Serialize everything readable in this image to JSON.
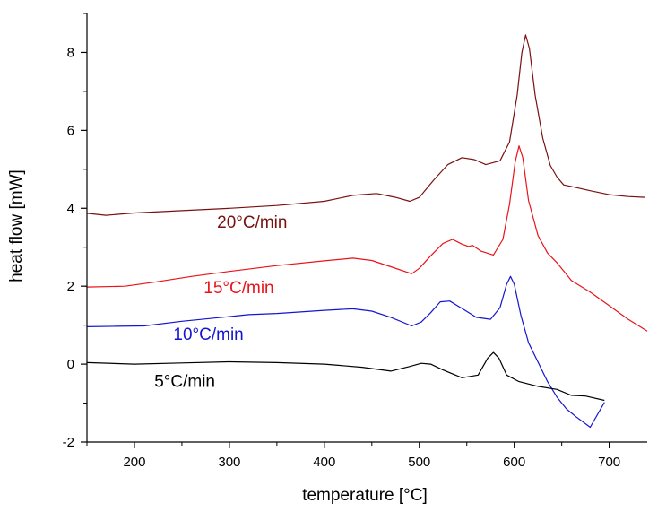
{
  "chart_data": {
    "type": "line",
    "title": "",
    "xlabel": "temperature [°C]",
    "ylabel": "heat flow [mW]",
    "xlim": [
      150,
      740
    ],
    "ylim": [
      -2,
      9
    ],
    "x_ticks": [
      "200",
      "300",
      "400",
      "500",
      "600",
      "700"
    ],
    "y_ticks": [
      "-2",
      "0",
      "2",
      "4",
      "6",
      "8"
    ],
    "grid": false,
    "legend": "none",
    "series": [
      {
        "name": "20°C/min",
        "color": "#7a1010",
        "points": [
          [
            150,
            3.87
          ],
          [
            170,
            3.82
          ],
          [
            200,
            3.88
          ],
          [
            250,
            3.94
          ],
          [
            300,
            4.0
          ],
          [
            350,
            4.07
          ],
          [
            400,
            4.18
          ],
          [
            430,
            4.33
          ],
          [
            455,
            4.38
          ],
          [
            475,
            4.28
          ],
          [
            490,
            4.18
          ],
          [
            500,
            4.28
          ],
          [
            515,
            4.72
          ],
          [
            530,
            5.12
          ],
          [
            545,
            5.3
          ],
          [
            558,
            5.25
          ],
          [
            570,
            5.12
          ],
          [
            585,
            5.22
          ],
          [
            595,
            5.7
          ],
          [
            603,
            6.9
          ],
          [
            608,
            8.0
          ],
          [
            612,
            8.45
          ],
          [
            616,
            8.1
          ],
          [
            622,
            6.9
          ],
          [
            630,
            5.8
          ],
          [
            638,
            5.1
          ],
          [
            645,
            4.8
          ],
          [
            652,
            4.6
          ],
          [
            662,
            4.55
          ],
          [
            680,
            4.45
          ],
          [
            700,
            4.35
          ],
          [
            720,
            4.3
          ],
          [
            738,
            4.28
          ]
        ]
      },
      {
        "name": "15°C/min",
        "color": "#e8141a",
        "points": [
          [
            150,
            1.98
          ],
          [
            190,
            2.0
          ],
          [
            220,
            2.1
          ],
          [
            260,
            2.25
          ],
          [
            300,
            2.38
          ],
          [
            350,
            2.53
          ],
          [
            400,
            2.65
          ],
          [
            430,
            2.72
          ],
          [
            450,
            2.66
          ],
          [
            470,
            2.5
          ],
          [
            492,
            2.32
          ],
          [
            500,
            2.46
          ],
          [
            512,
            2.78
          ],
          [
            525,
            3.1
          ],
          [
            535,
            3.2
          ],
          [
            545,
            3.08
          ],
          [
            552,
            3.02
          ],
          [
            556,
            3.05
          ],
          [
            565,
            2.9
          ],
          [
            578,
            2.8
          ],
          [
            588,
            3.2
          ],
          [
            595,
            4.1
          ],
          [
            601,
            5.2
          ],
          [
            605,
            5.6
          ],
          [
            609,
            5.3
          ],
          [
            615,
            4.2
          ],
          [
            625,
            3.3
          ],
          [
            635,
            2.85
          ],
          [
            645,
            2.6
          ],
          [
            660,
            2.15
          ],
          [
            680,
            1.85
          ],
          [
            700,
            1.5
          ],
          [
            720,
            1.15
          ],
          [
            740,
            0.85
          ]
        ]
      },
      {
        "name": "10°C/min",
        "color": "#1515d0",
        "points": [
          [
            150,
            0.96
          ],
          [
            180,
            0.97
          ],
          [
            210,
            0.98
          ],
          [
            250,
            1.1
          ],
          [
            300,
            1.22
          ],
          [
            320,
            1.27
          ],
          [
            350,
            1.3
          ],
          [
            400,
            1.38
          ],
          [
            430,
            1.42
          ],
          [
            450,
            1.36
          ],
          [
            470,
            1.2
          ],
          [
            492,
            0.98
          ],
          [
            502,
            1.08
          ],
          [
            512,
            1.32
          ],
          [
            522,
            1.6
          ],
          [
            532,
            1.62
          ],
          [
            545,
            1.43
          ],
          [
            560,
            1.2
          ],
          [
            575,
            1.15
          ],
          [
            585,
            1.45
          ],
          [
            592,
            2.05
          ],
          [
            596,
            2.25
          ],
          [
            600,
            2.05
          ],
          [
            607,
            1.25
          ],
          [
            615,
            0.55
          ],
          [
            625,
            0.05
          ],
          [
            635,
            -0.45
          ],
          [
            645,
            -0.85
          ],
          [
            655,
            -1.15
          ],
          [
            665,
            -1.35
          ],
          [
            680,
            -1.62
          ],
          [
            695,
            -0.98
          ]
        ]
      },
      {
        "name": "5°C/min",
        "color": "#000000",
        "points": [
          [
            150,
            0.04
          ],
          [
            200,
            0.0
          ],
          [
            250,
            0.03
          ],
          [
            300,
            0.06
          ],
          [
            350,
            0.04
          ],
          [
            400,
            0.0
          ],
          [
            440,
            -0.08
          ],
          [
            470,
            -0.18
          ],
          [
            490,
            -0.06
          ],
          [
            502,
            0.02
          ],
          [
            512,
            0.0
          ],
          [
            525,
            -0.15
          ],
          [
            545,
            -0.35
          ],
          [
            562,
            -0.28
          ],
          [
            572,
            0.15
          ],
          [
            578,
            0.3
          ],
          [
            584,
            0.15
          ],
          [
            592,
            -0.28
          ],
          [
            605,
            -0.45
          ],
          [
            625,
            -0.57
          ],
          [
            645,
            -0.65
          ],
          [
            660,
            -0.8
          ],
          [
            675,
            -0.82
          ],
          [
            695,
            -0.93
          ]
        ]
      }
    ],
    "annotations": [
      {
        "series": 0,
        "text": "20°C/min",
        "x": 287,
        "y": 3.5,
        "color": "#7a1010"
      },
      {
        "series": 1,
        "text": "15°C/min",
        "x": 273,
        "y": 1.82,
        "color": "#e8141a"
      },
      {
        "series": 2,
        "text": "10°C/min",
        "x": 241,
        "y": 0.62,
        "color": "#1515d0"
      },
      {
        "series": 3,
        "text": "5°C/min",
        "x": 221,
        "y": -0.58,
        "color": "#000000"
      }
    ]
  }
}
